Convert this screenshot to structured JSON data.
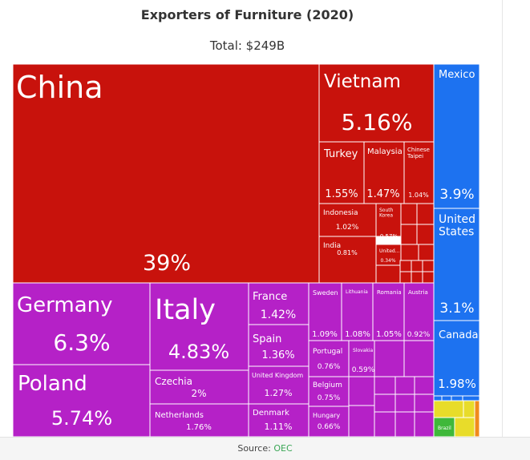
{
  "chart_data": {
    "type": "treemap",
    "title": "Exporters of Furniture (2020)",
    "subtitle": "Total: $249B",
    "colors": {
      "Asia": "#c8120c",
      "Europe": "#b521c7",
      "North America": "#1d72f0",
      "South America": "#e8dc2a",
      "Green": "#3fb83a",
      "Orange": "#f08a1c"
    },
    "items": [
      {
        "name": "China",
        "value": 39,
        "value_label": "39%",
        "group": "Asia"
      },
      {
        "name": "Vietnam",
        "value": 5.16,
        "value_label": "5.16%",
        "group": "Asia"
      },
      {
        "name": "Turkey",
        "value": 1.55,
        "value_label": "1.55%",
        "group": "Asia"
      },
      {
        "name": "Malaysia",
        "value": 1.47,
        "value_label": "1.47%",
        "group": "Asia"
      },
      {
        "name": "Chinese Taipei",
        "value": 1.04,
        "value_label": "1.04%",
        "group": "Asia"
      },
      {
        "name": "Indonesia",
        "value": 1.02,
        "value_label": "1.02%",
        "group": "Asia"
      },
      {
        "name": "South Korea",
        "value": 0.57,
        "value_label": "0.57%",
        "group": "Asia"
      },
      {
        "name": "India",
        "value": 0.81,
        "value_label": "0.81%",
        "group": "Asia"
      },
      {
        "name": "United...",
        "value": 0.34,
        "value_label": "0.34%",
        "group": "Asia"
      },
      {
        "name": "Germany",
        "value": 6.3,
        "value_label": "6.3%",
        "group": "Europe"
      },
      {
        "name": "Poland",
        "value": 5.74,
        "value_label": "5.74%",
        "group": "Europe"
      },
      {
        "name": "Italy",
        "value": 4.83,
        "value_label": "4.83%",
        "group": "Europe"
      },
      {
        "name": "Czechia",
        "value": 2,
        "value_label": "2%",
        "group": "Europe"
      },
      {
        "name": "Netherlands",
        "value": 1.76,
        "value_label": "1.76%",
        "group": "Europe"
      },
      {
        "name": "France",
        "value": 1.42,
        "value_label": "1.42%",
        "group": "Europe"
      },
      {
        "name": "Spain",
        "value": 1.36,
        "value_label": "1.36%",
        "group": "Europe"
      },
      {
        "name": "United Kingdom",
        "value": 1.27,
        "value_label": "1.27%",
        "group": "Europe"
      },
      {
        "name": "Denmark",
        "value": 1.11,
        "value_label": "1.11%",
        "group": "Europe"
      },
      {
        "name": "Sweden",
        "value": 1.09,
        "value_label": "1.09%",
        "group": "Europe"
      },
      {
        "name": "Lithuania",
        "value": 1.08,
        "value_label": "1.08%",
        "group": "Europe"
      },
      {
        "name": "Romania",
        "value": 1.05,
        "value_label": "1.05%",
        "group": "Europe"
      },
      {
        "name": "Austria",
        "value": 0.92,
        "value_label": "0.92%",
        "group": "Europe"
      },
      {
        "name": "Portugal",
        "value": 0.76,
        "value_label": "0.76%",
        "group": "Europe"
      },
      {
        "name": "Slovakia",
        "value": 0.59,
        "value_label": "0.59%",
        "group": "Europe"
      },
      {
        "name": "Belgium",
        "value": 0.75,
        "value_label": "0.75%",
        "group": "Europe"
      },
      {
        "name": "Hungary",
        "value": 0.66,
        "value_label": "0.66%",
        "group": "Europe"
      },
      {
        "name": "Mexico",
        "value": 3.9,
        "value_label": "3.9%",
        "group": "North America"
      },
      {
        "name": "United States",
        "value": 3.1,
        "value_label": "3.1%",
        "group": "North America"
      },
      {
        "name": "Canada",
        "value": 1.98,
        "value_label": "1.98%",
        "group": "North America"
      },
      {
        "name": "Brazil",
        "value": null,
        "value_label": "",
        "group": "Green"
      }
    ]
  },
  "footer": {
    "prefix": "Source:",
    "source": "OEC"
  }
}
